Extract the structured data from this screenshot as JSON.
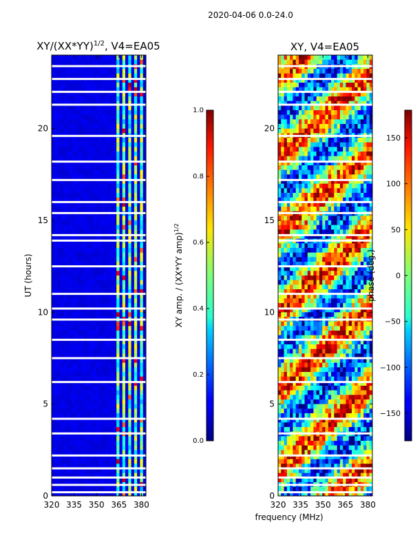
{
  "figure_title": "2020-04-06 0.0-24.0",
  "chart_data": [
    {
      "type": "heatmap",
      "title": "XY/(XX*YY)^{1/2}, V4=EA05",
      "title_main": "XY/(XX*YY)",
      "title_exp": "1/2",
      "title_tail": ", V4=EA05",
      "xlabel": "",
      "ylabel": "UT (hours)",
      "xlim": [
        320,
        383
      ],
      "ylim": [
        0,
        24
      ],
      "xticks": [
        320,
        335,
        350,
        365,
        380
      ],
      "yticks": [
        0,
        5,
        10,
        15,
        20
      ],
      "colormap": "jet",
      "colorbar": {
        "label_main": "XY amp. / (XX*YY amp)",
        "label_exp": "1/2",
        "range": [
          0.0,
          1.0
        ],
        "ticks": [
          "0.0",
          "0.2",
          "0.4",
          "0.6",
          "0.8",
          "1.0"
        ]
      },
      "high_amp_channel_bands_mhz": [
        [
          363,
          366
        ],
        [
          367,
          370
        ],
        [
          371,
          374
        ],
        [
          376,
          378
        ],
        [
          379,
          381
        ]
      ],
      "gaps_ut_hours": [
        23.4,
        22.7,
        22.0,
        21.3,
        19.6,
        18.2,
        17.2,
        16.0,
        15.4,
        14.2,
        13.9,
        12.5,
        11.0,
        10.2,
        9.6,
        8.5,
        7.5,
        6.2,
        4.2,
        3.4,
        2.2,
        1.5,
        1.0,
        0.6,
        0.2
      ]
    },
    {
      "type": "heatmap",
      "title": "XY, V4=EA05",
      "xlabel": "frequency (MHz)",
      "ylabel": "",
      "xlim": [
        320,
        383
      ],
      "ylim": [
        0,
        24
      ],
      "xticks": [
        320,
        335,
        350,
        365,
        380
      ],
      "yticks": [
        0,
        5,
        10,
        15,
        20
      ],
      "colormap": "jet",
      "colorbar": {
        "label": "phase (deg.)",
        "range": [
          -180,
          180
        ],
        "ticks": [
          "−150",
          "−100",
          "−50",
          "0",
          "50",
          "100",
          "150"
        ],
        "tick_values": [
          -150,
          -100,
          -50,
          0,
          50,
          100,
          150
        ]
      },
      "gaps_ut_hours": [
        23.4,
        22.7,
        22.0,
        21.3,
        19.6,
        18.2,
        17.2,
        16.0,
        15.4,
        14.2,
        13.9,
        12.5,
        11.0,
        10.2,
        9.6,
        8.5,
        7.5,
        6.2,
        4.2,
        3.4,
        2.2,
        1.5,
        1.0,
        0.6,
        0.2
      ]
    }
  ]
}
